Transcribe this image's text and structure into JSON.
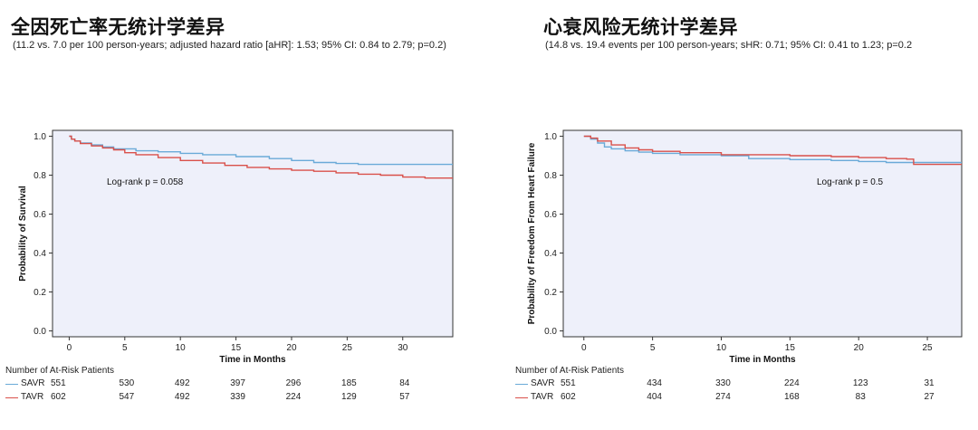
{
  "chart_data": [
    {
      "type": "line",
      "title": "全因死亡率无统计学差异",
      "subtitle": "(11.2 vs. 7.0 per 100 person-years; adjusted hazard ratio [aHR]: 1.53; 95% CI: 0.84 to 2.79; p=0.2)",
      "xlabel": "Time in Months",
      "ylabel": "Probability of Survival",
      "xlim": [
        -1.5,
        34.5
      ],
      "ylim": [
        -0.03,
        1.03
      ],
      "xticks": [
        0,
        5,
        10,
        15,
        20,
        25,
        30
      ],
      "yticks": [
        "0.0",
        "0.2",
        "0.4",
        "0.6",
        "0.8",
        "1.0"
      ],
      "annotation": "Log-rank p = 0.058",
      "series": [
        {
          "name": "SAVR",
          "color": "#6aaad8",
          "x": [
            0,
            0.2,
            0.5,
            1,
            2,
            3,
            4,
            6,
            8,
            10,
            12,
            15,
            18,
            20,
            22,
            24,
            26,
            28,
            30,
            34.5
          ],
          "y": [
            1.0,
            0.985,
            0.975,
            0.965,
            0.955,
            0.945,
            0.935,
            0.925,
            0.92,
            0.912,
            0.905,
            0.895,
            0.885,
            0.875,
            0.865,
            0.86,
            0.855,
            0.855,
            0.855,
            0.855
          ]
        },
        {
          "name": "TAVR",
          "color": "#d9504a",
          "x": [
            0,
            0.2,
            0.5,
            1,
            2,
            3,
            4,
            5,
            6,
            8,
            10,
            12,
            14,
            16,
            18,
            20,
            22,
            24,
            26,
            28,
            30,
            32,
            34.5
          ],
          "y": [
            1.0,
            0.985,
            0.975,
            0.962,
            0.95,
            0.94,
            0.93,
            0.915,
            0.905,
            0.89,
            0.875,
            0.862,
            0.85,
            0.84,
            0.832,
            0.825,
            0.82,
            0.812,
            0.805,
            0.8,
            0.79,
            0.785,
            0.785
          ]
        }
      ]
    },
    {
      "type": "line",
      "title": "心衰风险无统计学差异",
      "subtitle": "(14.8 vs. 19.4 events per 100 person-years; sHR: 0.71; 95% CI: 0.41 to 1.23; p=0.2",
      "xlabel": "Time in Months",
      "ylabel": "Probability of Freedom From Heart Failure",
      "xlim": [
        -1.5,
        27.5
      ],
      "ylim": [
        -0.03,
        1.03
      ],
      "xticks": [
        0,
        5,
        10,
        15,
        20,
        25
      ],
      "yticks": [
        "0.0",
        "0.2",
        "0.4",
        "0.6",
        "0.8",
        "1.0"
      ],
      "annotation": "Log-rank p = 0.5",
      "series": [
        {
          "name": "SAVR",
          "color": "#6aaad8",
          "x": [
            0,
            0.5,
            1,
            1.5,
            2,
            3,
            4,
            5,
            7,
            10,
            12,
            15,
            18,
            20,
            22,
            24,
            27.5
          ],
          "y": [
            1.0,
            0.985,
            0.965,
            0.945,
            0.935,
            0.925,
            0.918,
            0.912,
            0.905,
            0.9,
            0.885,
            0.88,
            0.875,
            0.87,
            0.865,
            0.865,
            0.865
          ]
        },
        {
          "name": "TAVR",
          "color": "#d9504a",
          "x": [
            0,
            0.5,
            1,
            2,
            3,
            4,
            5,
            7,
            10,
            12,
            15,
            18,
            20,
            22,
            23.5,
            24,
            27.5
          ],
          "y": [
            1.0,
            0.99,
            0.975,
            0.955,
            0.94,
            0.93,
            0.922,
            0.915,
            0.905,
            0.905,
            0.9,
            0.895,
            0.89,
            0.885,
            0.882,
            0.855,
            0.855
          ]
        }
      ]
    }
  ],
  "risk_tables": [
    {
      "title": "Number of At-Risk Patients",
      "rows": [
        {
          "label": "SAVR",
          "color": "#6aaad8",
          "values": [
            "551",
            "530",
            "492",
            "397",
            "296",
            "185",
            "84"
          ]
        },
        {
          "label": "TAVR",
          "color": "#d9504a",
          "values": [
            "602",
            "547",
            "492",
            "339",
            "224",
            "129",
            "57"
          ]
        }
      ]
    },
    {
      "title": "Number of At-Risk Patients",
      "rows": [
        {
          "label": "SAVR",
          "color": "#6aaad8",
          "values": [
            "551",
            "434",
            "330",
            "224",
            "123",
            "31"
          ]
        },
        {
          "label": "TAVR",
          "color": "#d9504a",
          "values": [
            "602",
            "404",
            "274",
            "168",
            "83",
            "27"
          ]
        }
      ]
    }
  ]
}
